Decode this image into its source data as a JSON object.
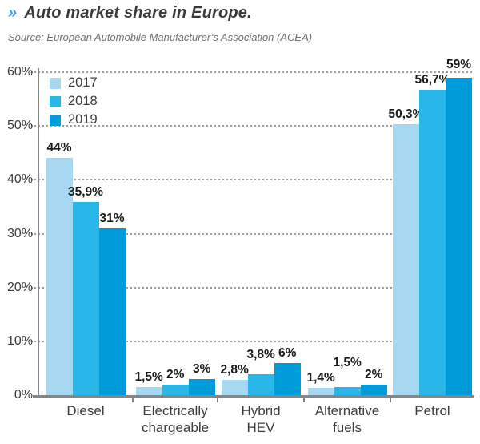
{
  "header": {
    "marker": "»",
    "title": "Auto market share in Europe.",
    "source": "Source: European Automobile Manufacturer’s Association (ACEA)"
  },
  "chart_data": {
    "type": "bar",
    "title": "Auto market share in Europe.",
    "categories": [
      "Diesel",
      "Electrically\nchargeable",
      "Hybrid\nHEV",
      "Alternative\nfuels",
      "Petrol"
    ],
    "series": [
      {
        "name": "2017",
        "color": "#a7d7f1",
        "values": [
          44,
          1.5,
          2.8,
          1.4,
          50.3
        ],
        "labels": [
          "44%",
          "1,5%",
          "2,8%",
          "1,4%",
          "50,3%"
        ]
      },
      {
        "name": "2018",
        "color": "#29b6e9",
        "values": [
          35.9,
          2,
          3.8,
          1.5,
          56.7
        ],
        "labels": [
          "35,9%",
          "2%",
          "3,8%",
          "1,5%",
          "56,7%"
        ]
      },
      {
        "name": "2019",
        "color": "#009cda",
        "values": [
          31,
          3,
          6,
          2,
          59
        ],
        "labels": [
          "31%",
          "3%",
          "6%",
          "2%",
          "59%"
        ]
      }
    ],
    "xlabel": "",
    "ylabel": "",
    "ylim": [
      0,
      60
    ],
    "ytick_step": 10,
    "ytick_labels": [
      "0%",
      "10%",
      "20%",
      "30%",
      "40%",
      "50%",
      "60%"
    ],
    "grid": "horizontal-dotted",
    "legend_position": "top-left-inside"
  },
  "colors": {
    "accent_marker": "#2fa9e0",
    "title_text": "#3a3a39",
    "source_text": "#6f6f6e",
    "axis": "#868686",
    "gridline": "#9b9b9b",
    "tick_label": "#3c3c3b",
    "bar_label": "#1a1a18",
    "series_2017": "#a7d7f1",
    "series_2018": "#29b6e9",
    "series_2019": "#009cda",
    "background": "#ffffff"
  }
}
